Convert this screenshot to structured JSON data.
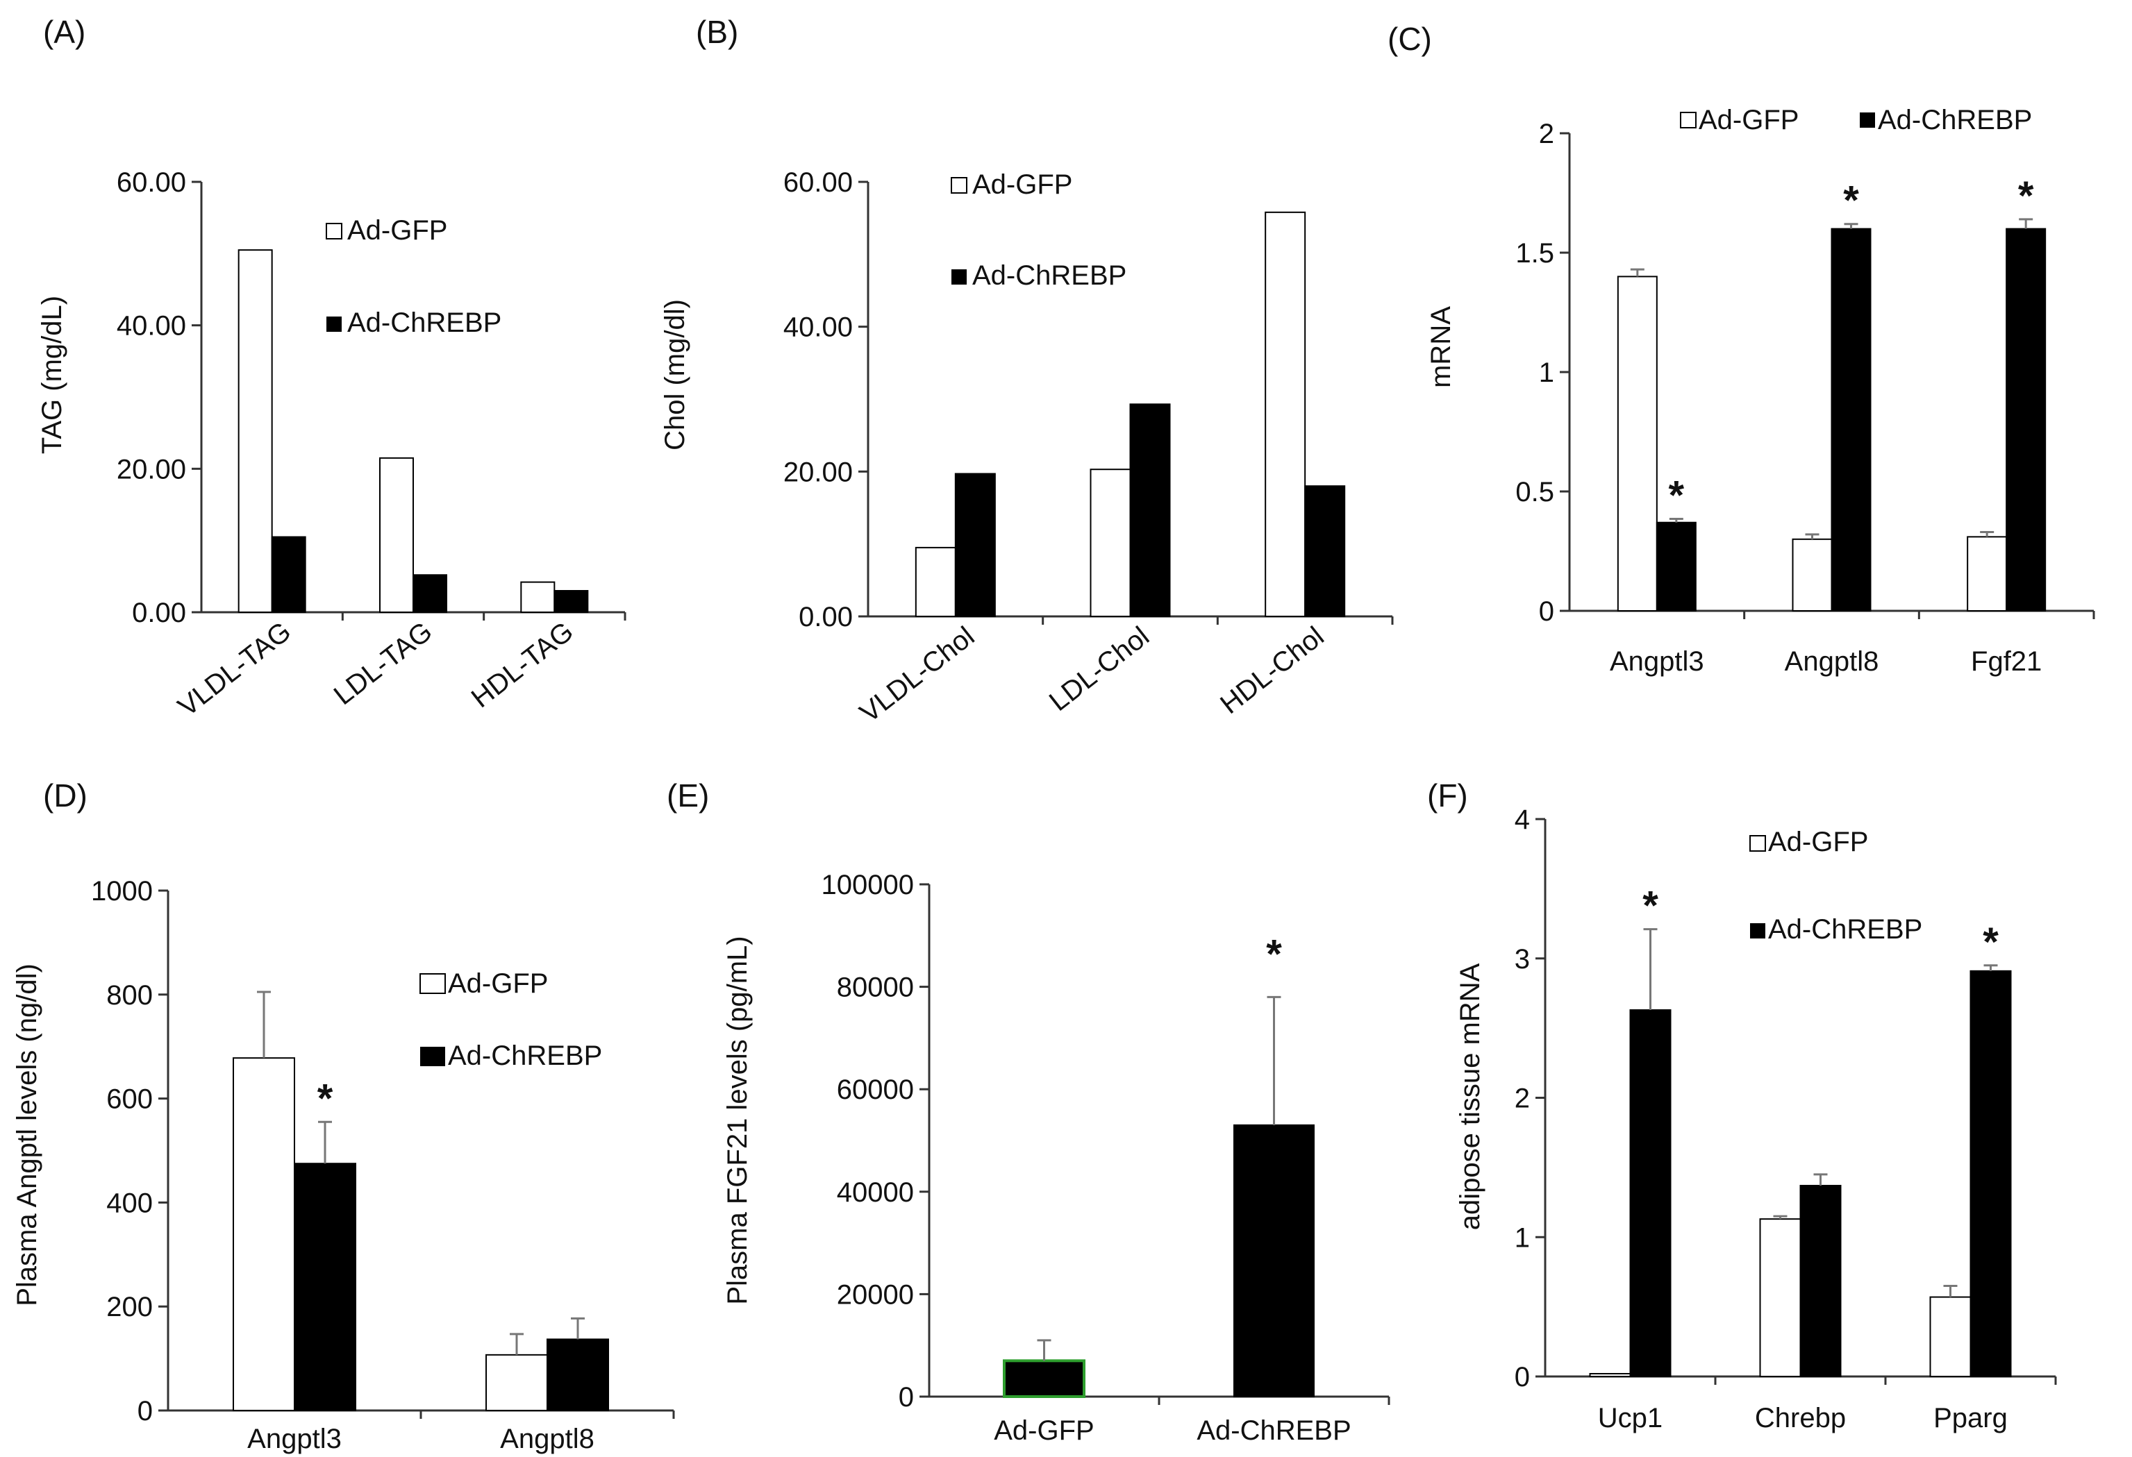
{
  "colors": {
    "gfp_fill": "#ffffff",
    "chrebp_fill": "#000000",
    "outline": "#000000",
    "axis": "#333333",
    "error_bar": "#777777",
    "panelE_gfp_fill": "#000000",
    "panelE_gfp_outline": "#2e9e2e"
  },
  "chart_data": [
    {
      "panel": "(A)",
      "type": "bar",
      "ylabel": "TAG (mg/dL)",
      "ylim": [
        0,
        60
      ],
      "yticks": [
        0,
        20,
        40,
        60
      ],
      "ytick_labels": [
        "0.00",
        "20.00",
        "40.00",
        "60.00"
      ],
      "categories": [
        "VLDL-TAG",
        "LDL-TAG",
        "HDL-TAG"
      ],
      "rotate_xlabels": true,
      "legend_position": "top-right",
      "series": [
        {
          "name": "Ad-GFP",
          "legend": "Ad-GFP",
          "values": [
            50.5,
            21.5,
            4.2
          ]
        },
        {
          "name": "Ad-ChREBP",
          "legend": "Ad-ChREBP",
          "values": [
            10.5,
            5.2,
            3.0
          ]
        }
      ]
    },
    {
      "panel": "(B)",
      "type": "bar",
      "ylabel": "Chol (mg/dl)",
      "ylim": [
        0,
        60
      ],
      "yticks": [
        0,
        20,
        40,
        60
      ],
      "ytick_labels": [
        "0.00",
        "20.00",
        "40.00",
        "60.00"
      ],
      "categories": [
        "VLDL-Chol",
        "LDL-Chol",
        "HDL-Chol"
      ],
      "rotate_xlabels": true,
      "legend_position": "top-left",
      "series": [
        {
          "name": "Ad-GFP",
          "legend": "Ad-GFP",
          "values": [
            9.5,
            20.3,
            55.8
          ]
        },
        {
          "name": "Ad-ChREBP",
          "legend": "Ad-ChREBP",
          "values": [
            19.7,
            29.3,
            18.0
          ]
        }
      ]
    },
    {
      "panel": "(C)",
      "type": "bar",
      "ylabel": "mRNA",
      "ylim": [
        0,
        2
      ],
      "yticks": [
        0,
        0.5,
        1,
        1.5,
        2
      ],
      "ytick_labels": [
        "0",
        "0.5",
        "1",
        "1.5",
        "2"
      ],
      "categories": [
        "Angptl3",
        "Angptl8",
        "Fgf21"
      ],
      "rotate_xlabels": false,
      "legend_position": "top",
      "series": [
        {
          "name": "Ad-GFP",
          "legend": "Ad-GFP",
          "values": [
            1.4,
            0.3,
            0.31
          ],
          "errors": [
            0.03,
            0.02,
            0.02
          ]
        },
        {
          "name": "Ad-ChREBP",
          "legend": "Ad-ChREBP",
          "values": [
            0.37,
            1.6,
            1.6
          ],
          "errors": [
            0.015,
            0.02,
            0.04
          ]
        }
      ],
      "annotations": [
        {
          "text": "*",
          "category": 0,
          "series": 1
        },
        {
          "text": "*",
          "category": 1,
          "series": 1
        },
        {
          "text": "*",
          "category": 2,
          "series": 1
        }
      ]
    },
    {
      "panel": "(D)",
      "type": "bar",
      "ylabel": "Plasma Angptl levels (ng/dl)",
      "ylim": [
        0,
        1000
      ],
      "yticks": [
        0,
        200,
        400,
        600,
        800,
        1000
      ],
      "ytick_labels": [
        "0",
        "200",
        "400",
        "600",
        "800",
        "1000"
      ],
      "categories": [
        "Angptl3",
        "Angptl8"
      ],
      "rotate_xlabels": false,
      "legend_position": "right",
      "series": [
        {
          "name": "Ad-GFP",
          "legend": "Ad-GFP",
          "values": [
            678,
            107
          ],
          "errors": [
            127,
            40
          ]
        },
        {
          "name": "Ad-ChREBP",
          "legend": "Ad-ChREBP",
          "values": [
            475,
            137
          ],
          "errors": [
            80,
            40
          ]
        }
      ],
      "annotations": [
        {
          "text": "*",
          "category": 0,
          "series": 1
        }
      ]
    },
    {
      "panel": "(E)",
      "type": "bar",
      "ylabel": "Plasma FGF21 levels (pg/mL)",
      "ylim": [
        0,
        100000
      ],
      "yticks": [
        0,
        20000,
        40000,
        60000,
        80000,
        100000
      ],
      "ytick_labels": [
        "0",
        "20000",
        "40000",
        "60000",
        "80000",
        "100000"
      ],
      "categories": [
        "Ad-GFP",
        "Ad-ChREBP"
      ],
      "rotate_xlabels": false,
      "values": [
        7000,
        53000
      ],
      "errors": [
        4000,
        25000
      ],
      "annotations": [
        {
          "text": "*",
          "category": 1
        }
      ]
    },
    {
      "panel": "(F)",
      "type": "bar",
      "ylabel": "adipose tissue mRNA",
      "ylim": [
        0,
        4
      ],
      "yticks": [
        0,
        1,
        2,
        3,
        4
      ],
      "ytick_labels": [
        "0",
        "1",
        "2",
        "3",
        "4"
      ],
      "categories": [
        "Ucp1",
        "Chrebp",
        "Pparg"
      ],
      "rotate_xlabels": false,
      "legend_position": "top-left",
      "series": [
        {
          "name": "Ad-GFP",
          "legend": "Ad-GFP",
          "values": [
            0.02,
            1.13,
            0.57
          ],
          "errors": [
            0,
            0.02,
            0.08
          ]
        },
        {
          "name": "Ad-ChREBP",
          "legend": "Ad-ChREBP",
          "values": [
            2.63,
            1.37,
            2.91
          ],
          "errors": [
            0.58,
            0.08,
            0.04
          ]
        }
      ],
      "annotations": [
        {
          "text": "*",
          "category": 0,
          "series": 1
        },
        {
          "text": "*",
          "category": 2,
          "series": 1
        }
      ]
    }
  ]
}
